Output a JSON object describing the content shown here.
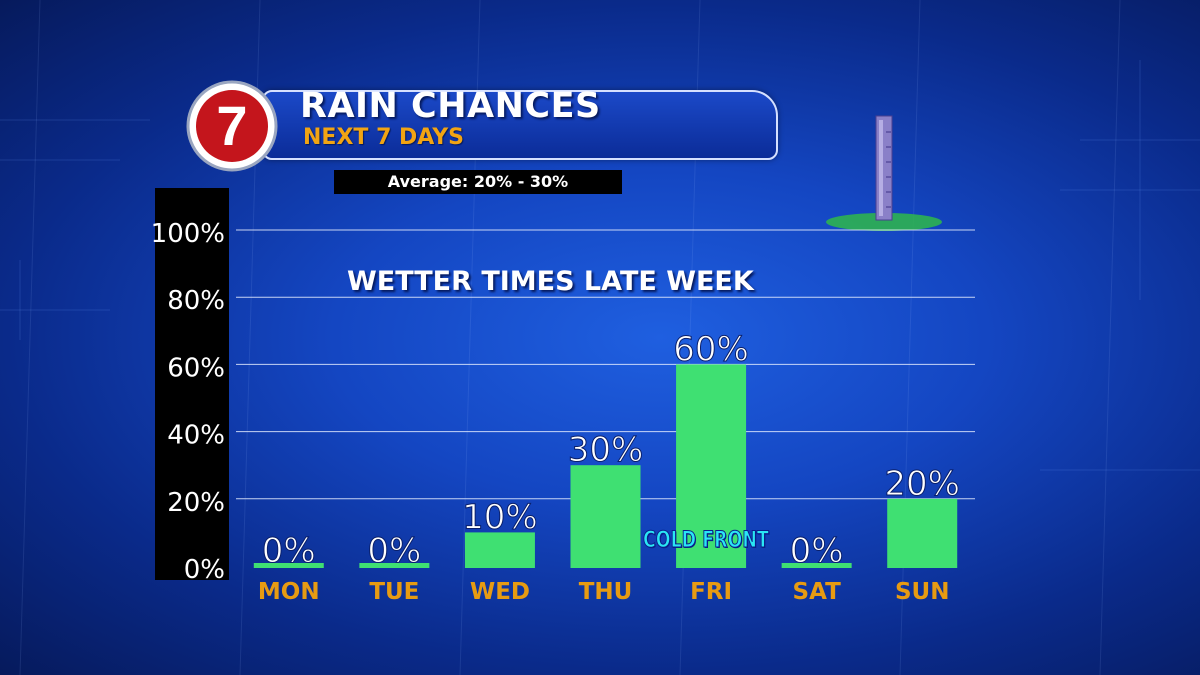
{
  "header": {
    "title": "RAIN CHANCES",
    "subtitle": "NEXT 7 DAYS",
    "logo_text": "7",
    "average": "Average: 20% - 30%"
  },
  "annotations": {
    "headline": "WETTER TIMES LATE WEEK",
    "cold_front": "COLD FRONT"
  },
  "colors": {
    "bar": "#3fe072",
    "day_label": "#e79b12",
    "logo_red": "#c4151c",
    "accent_cyan": "#2ae6f4"
  },
  "chart_data": {
    "type": "bar",
    "categories": [
      "MON",
      "TUE",
      "WED",
      "THU",
      "FRI",
      "SAT",
      "SUN"
    ],
    "values": [
      0,
      0,
      10,
      30,
      60,
      0,
      20
    ],
    "data_labels": [
      "0%",
      "0%",
      "10%",
      "30%",
      "60%",
      "0%",
      "20%"
    ],
    "title": "RAIN CHANCES",
    "subtitle": "NEXT 7 DAYS",
    "yticks": [
      0,
      20,
      40,
      60,
      80,
      100
    ],
    "ytick_labels": [
      "0%",
      "20%",
      "40%",
      "60%",
      "80%",
      "100%"
    ],
    "ylim": [
      0,
      100
    ],
    "grid": true,
    "xlabel": "",
    "ylabel": ""
  }
}
